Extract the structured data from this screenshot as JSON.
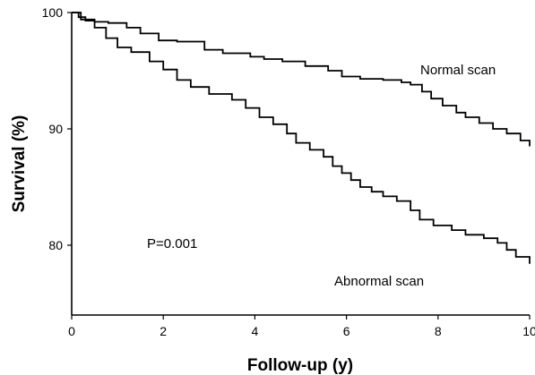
{
  "chart_data": {
    "type": "line",
    "step": true,
    "xlabel": "Follow-up (y)",
    "ylabel": "Survival (%)",
    "xlim": [
      0,
      10
    ],
    "ylim": [
      74,
      100
    ],
    "xticks": [
      0,
      2,
      4,
      6,
      8,
      10
    ],
    "yticks": [
      80,
      90,
      100
    ],
    "grid": false,
    "series": [
      {
        "name": "Normal scan",
        "x": [
          0,
          0.15,
          0.3,
          0.5,
          0.8,
          1.2,
          1.5,
          1.9,
          2.3,
          2.9,
          3.3,
          3.9,
          4.2,
          4.6,
          5.1,
          5.6,
          5.9,
          6.3,
          6.8,
          7.2,
          7.4,
          7.65,
          7.85,
          8.1,
          8.4,
          8.6,
          8.9,
          9.2,
          9.5,
          9.8,
          10
        ],
        "y": [
          100,
          99.6,
          99.3,
          99.2,
          99.1,
          98.7,
          98.2,
          97.6,
          97.5,
          96.8,
          96.5,
          96.2,
          96.0,
          95.8,
          95.4,
          95.0,
          94.5,
          94.3,
          94.2,
          94.0,
          93.8,
          93.2,
          92.6,
          92.0,
          91.4,
          91.0,
          90.5,
          90.0,
          89.6,
          89.0,
          88.5
        ]
      },
      {
        "name": "Abnormal scan",
        "x": [
          0,
          0.2,
          0.5,
          0.75,
          1.0,
          1.3,
          1.7,
          2.0,
          2.3,
          2.6,
          3.0,
          3.5,
          3.8,
          4.1,
          4.4,
          4.7,
          4.9,
          5.2,
          5.5,
          5.7,
          5.9,
          6.1,
          6.3,
          6.55,
          6.8,
          7.1,
          7.4,
          7.6,
          7.9,
          8.3,
          8.6,
          9.0,
          9.3,
          9.5,
          9.7,
          10
        ],
        "y": [
          100,
          99.4,
          98.7,
          97.8,
          97.0,
          96.6,
          95.8,
          95.1,
          94.2,
          93.6,
          93.0,
          92.5,
          91.8,
          91.0,
          90.4,
          89.6,
          88.8,
          88.2,
          87.6,
          86.8,
          86.2,
          85.6,
          85.0,
          84.6,
          84.2,
          83.8,
          83.0,
          82.2,
          81.7,
          81.3,
          80.9,
          80.6,
          80.2,
          79.6,
          79.0,
          78.4
        ]
      }
    ],
    "annotations": [
      {
        "text": "Normal scan"
      },
      {
        "text": "Abnormal scan"
      },
      {
        "text": "P=0.001"
      }
    ]
  }
}
